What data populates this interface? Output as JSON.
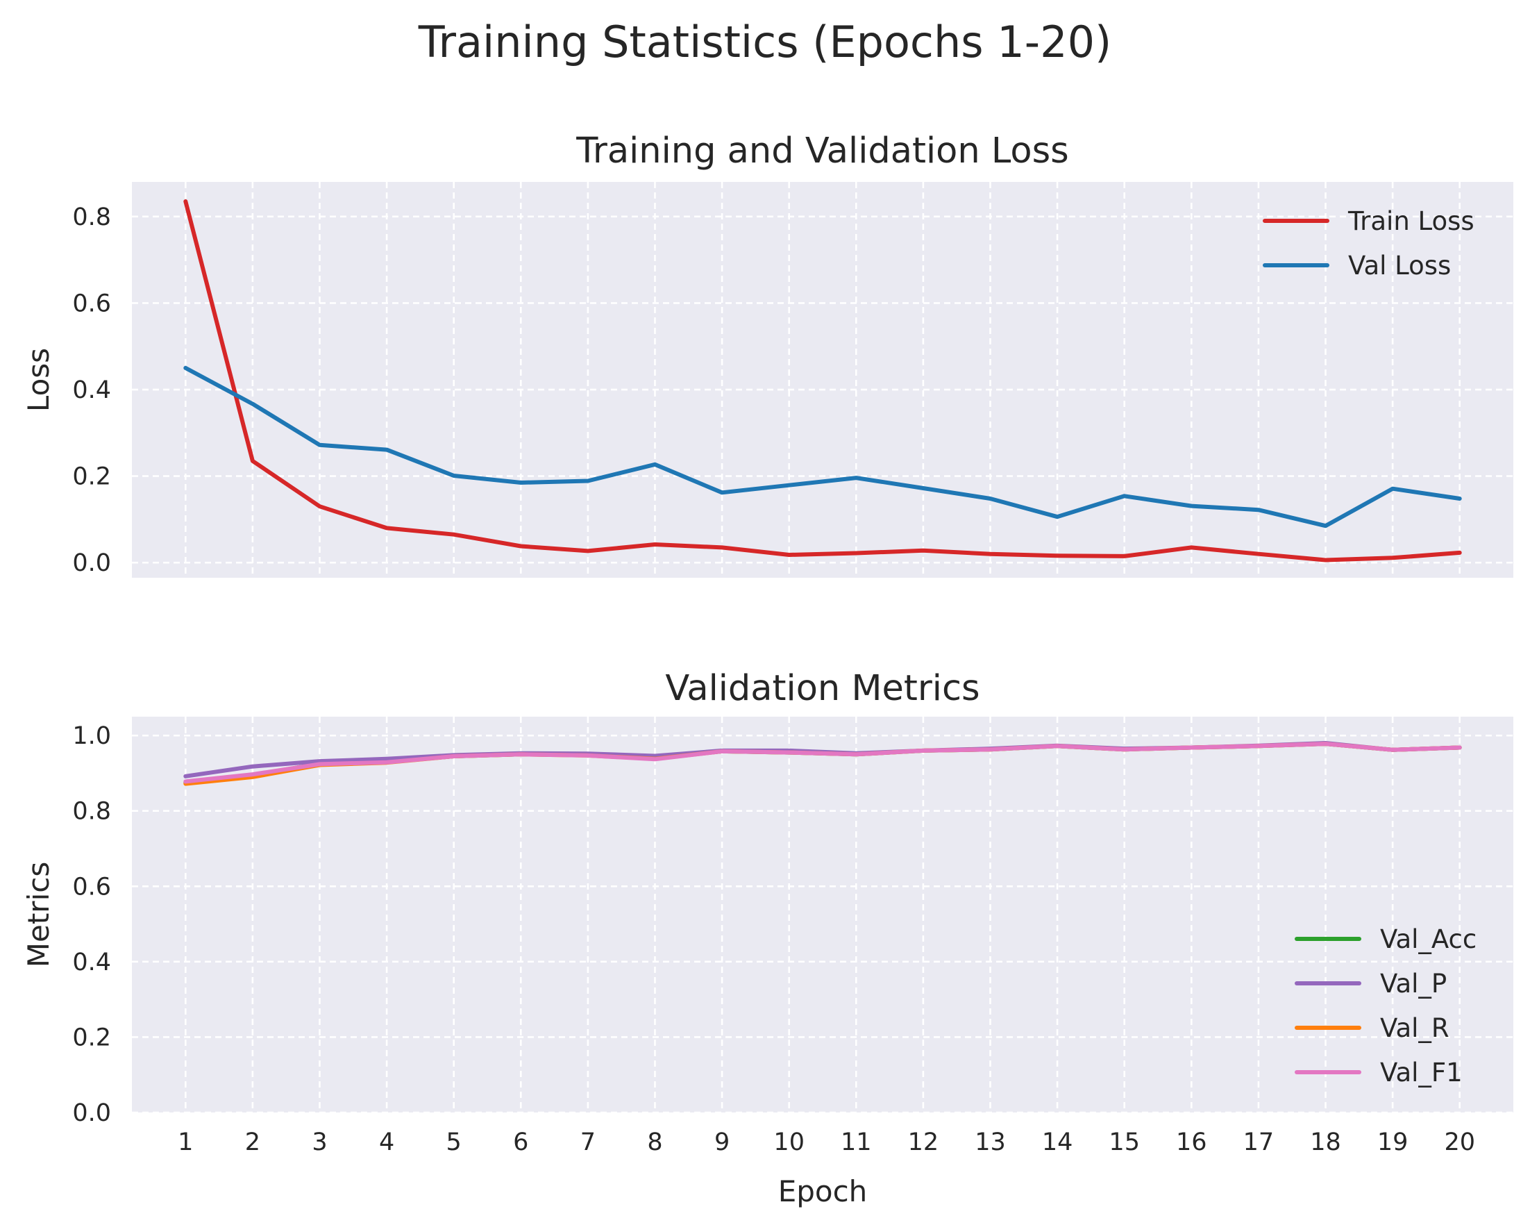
{
  "figure": {
    "title": "Training Statistics (Epochs 1-20)"
  },
  "chart_data": [
    {
      "type": "line",
      "title": "Training and Validation Loss",
      "xlabel": "",
      "ylabel": "Loss",
      "x": [
        1,
        2,
        3,
        4,
        5,
        6,
        7,
        8,
        9,
        10,
        11,
        12,
        13,
        14,
        15,
        16,
        17,
        18,
        19,
        20
      ],
      "xticks": [
        "1",
        "2",
        "3",
        "4",
        "5",
        "6",
        "7",
        "8",
        "9",
        "10",
        "11",
        "12",
        "13",
        "14",
        "15",
        "16",
        "17",
        "18",
        "19",
        "20"
      ],
      "xlim": [
        0.2,
        20.8
      ],
      "ylim": [
        -0.035,
        0.88
      ],
      "yticks": [
        0.0,
        0.2,
        0.4,
        0.6,
        0.8
      ],
      "ytick_labels": [
        "0.0",
        "0.2",
        "0.4",
        "0.6",
        "0.8"
      ],
      "grid": true,
      "legend_position": "upper right",
      "series": [
        {
          "name": "Train Loss",
          "color": "#d62728",
          "values": [
            0.835,
            0.235,
            0.13,
            0.08,
            0.065,
            0.038,
            0.027,
            0.042,
            0.035,
            0.018,
            0.022,
            0.028,
            0.02,
            0.016,
            0.015,
            0.035,
            0.02,
            0.006,
            0.011,
            0.023
          ]
        },
        {
          "name": "Val Loss",
          "color": "#1f77b4",
          "values": [
            0.45,
            0.367,
            0.272,
            0.261,
            0.201,
            0.185,
            0.189,
            0.227,
            0.162,
            0.179,
            0.196,
            0.172,
            0.148,
            0.106,
            0.154,
            0.131,
            0.122,
            0.085,
            0.171,
            0.148
          ]
        }
      ]
    },
    {
      "type": "line",
      "title": "Validation Metrics",
      "xlabel": "Epoch",
      "ylabel": "Metrics",
      "x": [
        1,
        2,
        3,
        4,
        5,
        6,
        7,
        8,
        9,
        10,
        11,
        12,
        13,
        14,
        15,
        16,
        17,
        18,
        19,
        20
      ],
      "xticks": [
        "1",
        "2",
        "3",
        "4",
        "5",
        "6",
        "7",
        "8",
        "9",
        "10",
        "11",
        "12",
        "13",
        "14",
        "15",
        "16",
        "17",
        "18",
        "19",
        "20"
      ],
      "xlim": [
        0.2,
        20.8
      ],
      "ylim": [
        0.0,
        1.05
      ],
      "yticks": [
        0.0,
        0.2,
        0.4,
        0.6,
        0.8,
        1.0
      ],
      "ytick_labels": [
        "0.0",
        "0.2",
        "0.4",
        "0.6",
        "0.8",
        "1.0"
      ],
      "grid": true,
      "legend_position": "lower right",
      "series": [
        {
          "name": "Val_Acc",
          "color": "#2ca02c",
          "values": [
            0.875,
            0.895,
            0.925,
            0.93,
            0.945,
            0.95,
            0.948,
            0.94,
            0.958,
            0.955,
            0.95,
            0.96,
            0.963,
            0.972,
            0.963,
            0.968,
            0.972,
            0.978,
            0.962,
            0.968
          ]
        },
        {
          "name": "Val_P",
          "color": "#9467bd",
          "values": [
            0.892,
            0.918,
            0.932,
            0.938,
            0.948,
            0.953,
            0.952,
            0.946,
            0.96,
            0.96,
            0.953,
            0.96,
            0.965,
            0.973,
            0.965,
            0.968,
            0.973,
            0.98,
            0.962,
            0.968
          ]
        },
        {
          "name": "Val_R",
          "color": "#ff7f0e",
          "values": [
            0.872,
            0.89,
            0.922,
            0.928,
            0.945,
            0.95,
            0.947,
            0.938,
            0.958,
            0.955,
            0.95,
            0.96,
            0.963,
            0.972,
            0.963,
            0.968,
            0.972,
            0.978,
            0.962,
            0.968
          ]
        },
        {
          "name": "Val_F1",
          "color": "#e377c2",
          "values": [
            0.878,
            0.897,
            0.924,
            0.929,
            0.945,
            0.95,
            0.947,
            0.937,
            0.958,
            0.955,
            0.95,
            0.96,
            0.963,
            0.972,
            0.963,
            0.968,
            0.972,
            0.978,
            0.962,
            0.968
          ]
        }
      ]
    }
  ]
}
